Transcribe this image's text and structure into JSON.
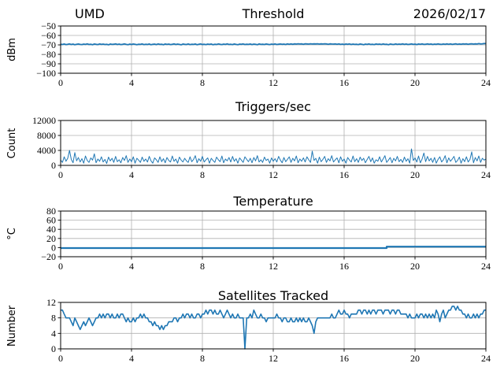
{
  "figure": {
    "line_color": "#1f77b4",
    "grid_color": "#b0b0b0",
    "axis_color": "#000000",
    "text_color": "#000000",
    "background": "#ffffff"
  },
  "chart_data": [
    {
      "type": "line",
      "title": "Threshold",
      "left_title": "UMD",
      "right_title": "2026/02/17",
      "ylabel": "dBm",
      "xlim": [
        0,
        24
      ],
      "ylim": [
        -100,
        -50
      ],
      "xticks": [
        0,
        4,
        8,
        12,
        16,
        20,
        24
      ],
      "yticks": [
        -100,
        -90,
        -80,
        -70,
        -60,
        -50
      ],
      "grid": true,
      "legend": "none",
      "series": [
        {
          "name": "threshold_dbm",
          "x0": 0,
          "dx": 0.1,
          "lw": 1.8,
          "values": [
            -69.3,
            -69.6,
            -69.1,
            -69.7,
            -69.4,
            -69.0,
            -69.6,
            -69.2,
            -69.8,
            -69.4,
            -69.1,
            -69.5,
            -69.7,
            -69.2,
            -69.5,
            -68.9,
            -69.6,
            -69.3,
            -69.8,
            -69.1,
            -69.4,
            -69.7,
            -69.0,
            -69.5,
            -69.2,
            -69.6,
            -69.4,
            -69.9,
            -69.1,
            -69.5,
            -69.3,
            -68.9,
            -69.6,
            -69.2,
            -69.7,
            -69.4,
            -69.0,
            -69.5,
            -69.8,
            -69.2,
            -69.6,
            -69.1,
            -69.4,
            -69.8,
            -69.3,
            -69.5,
            -69.0,
            -69.7,
            -69.3,
            -69.6,
            -69.1,
            -69.8,
            -69.4,
            -69.2,
            -69.7,
            -69.0,
            -69.5,
            -69.3,
            -69.8,
            -69.1,
            -69.5,
            -69.2,
            -69.7,
            -69.4,
            -68.9,
            -69.6,
            -69.2,
            -69.5,
            -69.9,
            -69.1,
            -69.4,
            -69.6,
            -69.0,
            -69.7,
            -69.3,
            -69.5,
            -69.1,
            -69.8,
            -69.4,
            -69.0,
            -69.6,
            -69.3,
            -69.7,
            -69.2,
            -69.5,
            -69.1,
            -69.8,
            -69.3,
            -69.6,
            -69.0,
            -69.4,
            -69.7,
            -69.2,
            -69.5,
            -68.9,
            -69.6,
            -69.3,
            -69.7,
            -69.1,
            -69.5,
            -69.8,
            -69.2,
            -69.4,
            -69.0,
            -69.6,
            -69.3,
            -69.5,
            -69.1,
            -69.7,
            -69.2,
            -69.4,
            -69.8,
            -69.0,
            -69.5,
            -69.3,
            -69.6,
            -69.1,
            -69.4,
            -69.7,
            -69.2,
            -69.5,
            -69.0,
            -69.6,
            -69.3,
            -69.1,
            -69.4,
            -69.2,
            -69.6,
            -68.9,
            -69.3,
            -69.0,
            -69.4,
            -68.9,
            -69.2,
            -68.8,
            -69.1,
            -68.9,
            -69.3,
            -68.8,
            -69.0,
            -69.2,
            -68.8,
            -69.1,
            -68.9,
            -69.0,
            -68.8,
            -69.2,
            -68.9,
            -69.1,
            -68.8,
            -69.0,
            -69.3,
            -68.9,
            -69.1,
            -69.2,
            -69.0,
            -69.3,
            -69.0,
            -69.5,
            -69.2,
            -69.6,
            -69.1,
            -69.4,
            -69.0,
            -69.6,
            -69.2,
            -69.5,
            -69.3,
            -69.7,
            -69.1,
            -69.4,
            -69.8,
            -69.2,
            -69.5,
            -69.0,
            -69.6,
            -69.3,
            -69.7,
            -69.1,
            -69.4,
            -69.2,
            -69.6,
            -69.0,
            -69.5,
            -69.3,
            -69.8,
            -69.1,
            -69.4,
            -69.6,
            -69.0,
            -69.5,
            -69.2,
            -69.4,
            -68.9,
            -69.5,
            -69.1,
            -69.6,
            -69.3,
            -69.0,
            -69.5,
            -69.2,
            -69.7,
            -69.1,
            -69.4,
            -69.0,
            -69.5,
            -69.3,
            -68.9,
            -69.4,
            -69.1,
            -69.6,
            -69.2,
            -69.4,
            -68.9,
            -69.3,
            -69.5,
            -69.1,
            -69.4,
            -68.9,
            -69.3,
            -69.0,
            -69.5,
            -69.2,
            -68.8,
            -69.4,
            -69.1,
            -69.3,
            -68.9,
            -69.2,
            -68.9,
            -69.3,
            -69.0,
            -68.8,
            -69.2,
            -68.9,
            -69.1,
            -68.7,
            -69.0,
            -68.8,
            -68.6,
            -68.7
          ]
        }
      ]
    },
    {
      "type": "line",
      "title": "Triggers/sec",
      "ylabel": "Count",
      "xlim": [
        0,
        24
      ],
      "ylim": [
        0,
        12000
      ],
      "xticks": [
        0,
        4,
        8,
        12,
        16,
        20,
        24
      ],
      "yticks": [
        0,
        4000,
        8000,
        12000
      ],
      "grid": true,
      "legend": "none",
      "series": [
        {
          "name": "triggers_per_sec",
          "x0": 0,
          "dx": 0.1,
          "lw": 1.0,
          "values": [
            1400,
            800,
            2300,
            1100,
            1900,
            4000,
            1600,
            700,
            3400,
            1200,
            2100,
            900,
            1800,
            600,
            2500,
            1300,
            800,
            2000,
            1400,
            3100,
            700,
            1700,
            1100,
            2300,
            900,
            1600,
            500,
            2200,
            1200,
            1900,
            800,
            2400,
            1000,
            1500,
            700,
            2100,
            1300,
            2600,
            800,
            1700,
            1000,
            2300,
            600,
            1900,
            1400,
            800,
            2200,
            1100,
            1700,
            900,
            2400,
            1200,
            600,
            2000,
            1500,
            800,
            2300,
            1000,
            1800,
            700,
            2100,
            1300,
            900,
            2500,
            1100,
            1700,
            600,
            2200,
            1400,
            900,
            1900,
            1200,
            800,
            2300,
            1000,
            1600,
            2600,
            700,
            1800,
            1100,
            2400,
            900,
            1500,
            2000,
            600,
            1900,
            1300,
            800,
            2200,
            1500,
            1000,
            2500,
            700,
            1700,
            1200,
            2100,
            900,
            2400,
            1100,
            1800,
            600,
            2000,
            1400,
            800,
            2300,
            1600,
            1000,
            1900,
            700,
            2100,
            1200,
            2600,
            900,
            1500,
            800,
            2200,
            1300,
            1700,
            600,
            2000,
            1100,
            1800,
            900,
            2400,
            1400,
            700,
            2100,
            1000,
            1600,
            2300,
            800,
            1900,
            1200,
            2500,
            700,
            1700,
            1100,
            2000,
            900,
            2300,
            1500,
            800,
            3800,
            1300,
            1900,
            600,
            2200,
            1000,
            1600,
            2400,
            800,
            1800,
            1200,
            2600,
            900,
            1500,
            2000,
            700,
            2300,
            1100,
            1700,
            600,
            2100,
            1400,
            900,
            2500,
            1000,
            1800,
            800,
            2200,
            1300,
            1900,
            700,
            1600,
            2400,
            1000,
            2000,
            600,
            1500,
            1100,
            2300,
            900,
            1700,
            2600,
            800,
            1400,
            2100,
            700,
            1900,
            1200,
            2400,
            1000,
            1600,
            800,
            2200,
            1100,
            1800,
            600,
            4400,
            1300,
            2000,
            900,
            2500,
            700,
            1700,
            3300,
            1000,
            2400,
            1200,
            1900,
            800,
            2100,
            600,
            1600,
            2300,
            900,
            1500,
            2600,
            700,
            2000,
            1100,
            1700,
            2400,
            800,
            1300,
            2200,
            600,
            1800,
            1000,
            2300,
            900,
            1600,
            3600,
            700,
            2100,
            1200,
            2500,
            800,
            1900,
            1400,
            1700
          ]
        }
      ]
    },
    {
      "type": "line",
      "title": "Temperature",
      "ylabel": "°C",
      "xlim": [
        0,
        24
      ],
      "ylim": [
        -20,
        80
      ],
      "xticks": [
        0,
        4,
        8,
        12,
        16,
        20,
        24
      ],
      "yticks": [
        -20,
        0,
        20,
        40,
        60,
        80
      ],
      "grid": true,
      "legend": "none",
      "series": [
        {
          "name": "temperature_c",
          "x": [
            0,
            18.4,
            18.4,
            24
          ],
          "lw": 2.2,
          "values": [
            -1,
            -1,
            2,
            2
          ]
        }
      ]
    },
    {
      "type": "line",
      "title": "Satellites Tracked",
      "ylabel": "Number",
      "xlim": [
        0,
        24
      ],
      "ylim": [
        0,
        12
      ],
      "xticks": [
        0,
        4,
        8,
        12,
        16,
        20,
        24
      ],
      "yticks": [
        0,
        4,
        8,
        12
      ],
      "grid": true,
      "legend": "none",
      "series": [
        {
          "name": "satellites_tracked",
          "x0": 0,
          "dx": 0.1,
          "lw": 1.6,
          "values": [
            10,
            10,
            9,
            8,
            8,
            8,
            7,
            6,
            8,
            7,
            6,
            5,
            6,
            7,
            6,
            7,
            8,
            7,
            6,
            7,
            8,
            8,
            9,
            8,
            9,
            8,
            9,
            9,
            8,
            9,
            8,
            8,
            9,
            8,
            9,
            9,
            8,
            7,
            8,
            7,
            7,
            8,
            7,
            8,
            8,
            9,
            8,
            9,
            8,
            8,
            7,
            7,
            6,
            7,
            6,
            6,
            5,
            6,
            5,
            6,
            6,
            7,
            7,
            7,
            8,
            8,
            7,
            8,
            8,
            9,
            8,
            9,
            9,
            8,
            9,
            8,
            8,
            9,
            9,
            8,
            9,
            9,
            10,
            9,
            10,
            10,
            9,
            10,
            9,
            9,
            10,
            9,
            8,
            9,
            10,
            9,
            8,
            9,
            8,
            8,
            9,
            8,
            8,
            8,
            0,
            8,
            8,
            9,
            8,
            10,
            9,
            8,
            8,
            9,
            8,
            8,
            7,
            8,
            8,
            8,
            8,
            8,
            9,
            8,
            8,
            7,
            8,
            8,
            7,
            7,
            8,
            7,
            7,
            8,
            7,
            8,
            7,
            8,
            7,
            7,
            8,
            7,
            6,
            4,
            7,
            8,
            8,
            8,
            8,
            8,
            8,
            8,
            8,
            9,
            8,
            8,
            9,
            10,
            9,
            9,
            10,
            9,
            9,
            8,
            9,
            9,
            9,
            9,
            10,
            10,
            9,
            10,
            10,
            9,
            10,
            9,
            10,
            10,
            9,
            10,
            10,
            10,
            9,
            10,
            10,
            10,
            9,
            10,
            10,
            9,
            10,
            10,
            9,
            9,
            9,
            9,
            8,
            9,
            8,
            8,
            8,
            9,
            8,
            9,
            9,
            8,
            9,
            8,
            9,
            8,
            9,
            8,
            10,
            9,
            7,
            9,
            10,
            8,
            9,
            10,
            10,
            11,
            11,
            10,
            11,
            10,
            10,
            9,
            9,
            8,
            9,
            8,
            8,
            9,
            8,
            9,
            8,
            9,
            9,
            10,
            10
          ]
        }
      ]
    }
  ]
}
